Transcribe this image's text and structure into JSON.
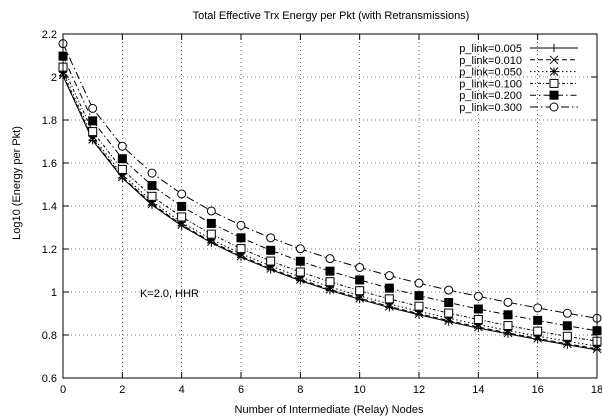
{
  "chart_data": {
    "type": "line",
    "title": "Total Effective Trx Energy per Pkt (with Retransmissions)",
    "xlabel": "Number of Intermediate (Relay) Nodes",
    "ylabel": "Log10 (Energy per Pkt)",
    "xlim": [
      0,
      18
    ],
    "ylim": [
      0.6,
      2.2
    ],
    "xticks": [
      0,
      2,
      4,
      6,
      8,
      10,
      12,
      14,
      16,
      18
    ],
    "yticks": [
      0.6,
      0.8,
      1,
      1.2,
      1.4,
      1.6,
      1.8,
      2,
      2.2
    ],
    "ytick_labels": [
      "0.6",
      "0.8",
      "1",
      "1.2",
      "1.4",
      "1.6",
      "1.8",
      "2",
      "2.2"
    ],
    "grid": true,
    "legend_position": "top-right",
    "annotation": "K=2.0, HHR",
    "x": [
      0,
      1,
      2,
      3,
      4,
      5,
      6,
      7,
      8,
      9,
      10,
      11,
      12,
      13,
      14,
      15,
      16,
      17,
      18
    ],
    "series": [
      {
        "name": "p_link=0.005",
        "marker": "plus",
        "dash": "solid",
        "values": [
          2.005,
          1.705,
          1.53,
          1.405,
          1.308,
          1.229,
          1.162,
          1.104,
          1.053,
          1.007,
          0.966,
          0.928,
          0.894,
          0.862,
          0.832,
          0.805,
          0.779,
          0.754,
          0.731
        ]
      },
      {
        "name": "p_link=0.010",
        "marker": "cross",
        "dash": "dashed",
        "values": [
          2.01,
          1.71,
          1.535,
          1.41,
          1.313,
          1.234,
          1.167,
          1.109,
          1.058,
          1.012,
          0.971,
          0.933,
          0.899,
          0.867,
          0.837,
          0.81,
          0.784,
          0.759,
          0.736
        ]
      },
      {
        "name": "p_link=0.050",
        "marker": "star",
        "dash": "dotted",
        "values": [
          2.022,
          1.722,
          1.546,
          1.421,
          1.324,
          1.245,
          1.178,
          1.121,
          1.07,
          1.024,
          0.982,
          0.945,
          0.91,
          0.878,
          0.849,
          0.821,
          0.795,
          0.771,
          0.748
        ]
      },
      {
        "name": "p_link=0.100",
        "marker": "square",
        "dash": "dashdot-fine",
        "values": [
          2.046,
          1.746,
          1.57,
          1.445,
          1.349,
          1.269,
          1.202,
          1.144,
          1.093,
          1.048,
          1.006,
          0.968,
          0.934,
          0.902,
          0.872,
          0.844,
          0.818,
          0.794,
          0.771
        ]
      },
      {
        "name": "p_link=0.200",
        "marker": "filled-square",
        "dash": "dashdot",
        "values": [
          2.097,
          1.796,
          1.62,
          1.495,
          1.398,
          1.319,
          1.252,
          1.194,
          1.143,
          1.097,
          1.056,
          1.018,
          0.983,
          0.951,
          0.921,
          0.894,
          0.868,
          0.843,
          0.82
        ]
      },
      {
        "name": "p_link=0.300",
        "marker": "circle",
        "dash": "dashdot-long",
        "values": [
          2.155,
          1.854,
          1.678,
          1.553,
          1.456,
          1.377,
          1.31,
          1.252,
          1.201,
          1.155,
          1.114,
          1.076,
          1.041,
          1.009,
          0.98,
          0.952,
          0.926,
          0.901,
          0.878
        ]
      }
    ]
  }
}
